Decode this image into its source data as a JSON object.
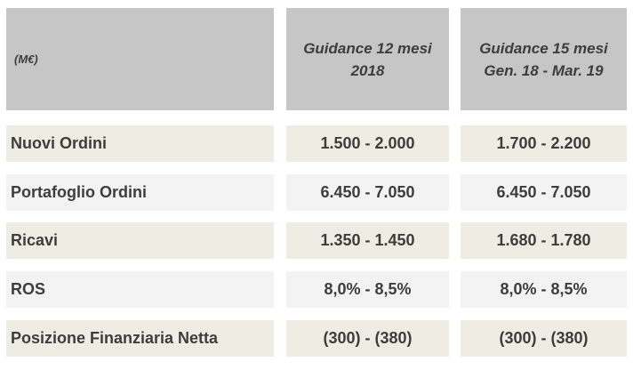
{
  "header": {
    "unit": "(M€)",
    "col1": [
      "Guidance 12 mesi",
      "2018"
    ],
    "col2": [
      "Guidance 15 mesi",
      "Gen. 18 - Mar. 19"
    ]
  },
  "rows": [
    {
      "label": "Nuovi Ordini",
      "v1": "1.500 - 2.000",
      "v2": "1.700 - 2.200"
    },
    {
      "label": "Portafoglio Ordini",
      "v1": "6.450 - 7.050",
      "v2": "6.450 - 7.050"
    },
    {
      "label": "Ricavi",
      "v1": "1.350 - 1.450",
      "v2": "1.680 - 1.780"
    },
    {
      "label": "ROS",
      "v1": "8,0% - 8,5%",
      "v2": "8,0% - 8,5%"
    },
    {
      "label": "Posizione Finanziaria Netta",
      "v1": "(300) - (380)",
      "v2": "(300) - (380)"
    }
  ]
}
